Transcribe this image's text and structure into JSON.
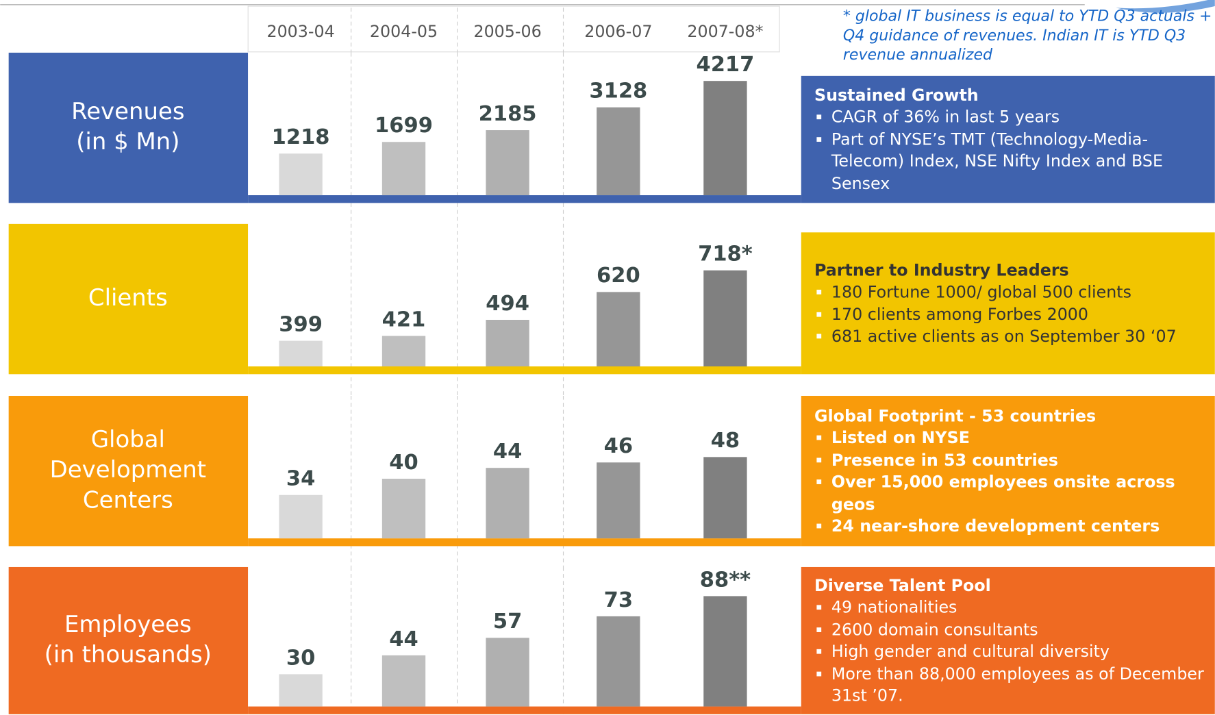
{
  "footnote": "* global IT business is equal  to YTD Q3 actuals + Q4 guidance of revenues. Indian IT is YTD Q3 revenue annualized",
  "chart_data": [
    {
      "type": "bar",
      "title": [
        "Revenues",
        "(in $ Mn)"
      ],
      "color": "#3f62ae",
      "categories": [
        "2003-04",
        "2004-05",
        "2005-06",
        "2006-07",
        "2007-08*"
      ],
      "values": [
        1218,
        1699,
        2185,
        3128,
        4217
      ],
      "colors": [
        "#d9d9d9",
        "#bfbfbf",
        "#b0b0b0",
        "#969696",
        "#808080"
      ],
      "ylim": [
        -500,
        5000
      ],
      "panel": {
        "heading": "Sustained Growth",
        "bullets": [
          "CAGR of 36% in last 5 years",
          "Part of NYSE’s TMT (Technology-Media-Telecom) Index, NSE  Nifty Index and BSE Sensex"
        ]
      }
    },
    {
      "type": "bar",
      "title": [
        "Clients"
      ],
      "color": "#f2c500",
      "values": [
        399,
        421,
        494,
        620,
        718
      ],
      "value_labels": [
        "399",
        "421",
        "494",
        "620",
        "718*"
      ],
      "colors": [
        "#d9d9d9",
        "#bfbfbf",
        "#b0b0b0",
        "#969696",
        "#808080"
      ],
      "ylim": [
        283,
        890
      ],
      "panel": {
        "heading": "Partner to Industry Leaders",
        "bullets": [
          "180 Fortune 1000/ global 500 clients",
          "170 clients among Forbes 2000",
          "681 active clients as on September 30 ‘07"
        ]
      }
    },
    {
      "type": "bar",
      "title": [
        "Global",
        "Development",
        "Centers"
      ],
      "color": "#f99b0b",
      "values": [
        34,
        40,
        44,
        46,
        48
      ],
      "colors": [
        "#d9d9d9",
        "#bfbfbf",
        "#b0b0b0",
        "#969696",
        "#808080"
      ],
      "ylim": [
        18,
        68
      ],
      "panel": {
        "heading": "Global Footprint - 53 countries",
        "bullets": [
          "Listed on NYSE",
          "Presence in 53 countries",
          "Over 15,000 employees onsite across geos",
          "24 near-shore development centers"
        ]
      }
    },
    {
      "type": "bar",
      "title": [
        "Employees",
        "(in thousands)"
      ],
      "color": "#ef6a22",
      "values": [
        30,
        44,
        57,
        73,
        88
      ],
      "value_labels": [
        "30",
        "44",
        "57",
        "73",
        "88**"
      ],
      "colors": [
        "#d9d9d9",
        "#bfbfbf",
        "#b0b0b0",
        "#969696",
        "#808080"
      ],
      "ylim": [
        6,
        105
      ],
      "panel": {
        "heading": "Diverse Talent Pool",
        "bullets": [
          "49 nationalities",
          "2600 domain consultants",
          "High gender and cultural diversity",
          "More than 88,000 employees as of December 31st ’07."
        ]
      }
    }
  ]
}
